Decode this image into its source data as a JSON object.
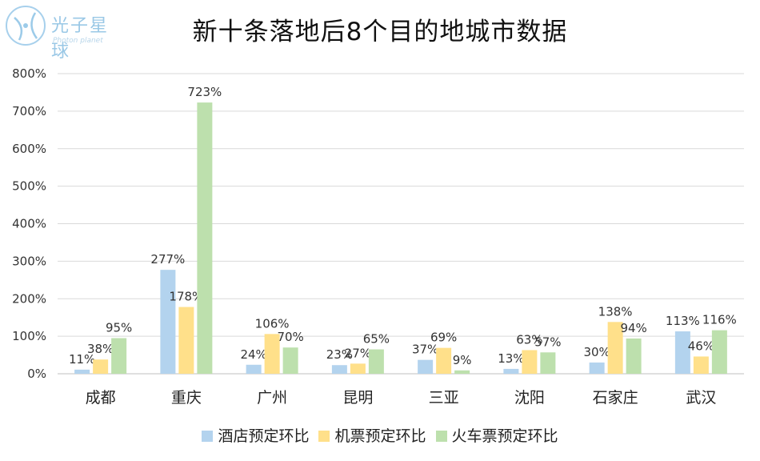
{
  "logo": {
    "text": "光子星球",
    "subtext": "Photon planet"
  },
  "chart_data": {
    "type": "bar",
    "title": "新十条落地后8个目的地城市数据",
    "categories": [
      "成都",
      "重庆",
      "广州",
      "昆明",
      "三亚",
      "沈阳",
      "石家庄",
      "武汉"
    ],
    "series": [
      {
        "name": "酒店预定环比",
        "color": "#b3d3ee",
        "values": [
          11,
          277,
          24,
          23,
          37,
          13,
          30,
          113
        ],
        "labels": [
          "11%",
          "277%",
          "24%",
          "23%",
          "37%",
          "13%",
          "30%",
          "113%"
        ]
      },
      {
        "name": "机票预定环比",
        "color": "#ffe08a",
        "values": [
          38,
          178,
          106,
          27,
          69,
          63,
          138,
          46
        ],
        "labels": [
          "38%",
          "178%",
          "106%",
          "27%",
          "69%",
          "63%",
          "138%",
          "46%"
        ]
      },
      {
        "name": "火车票预定环比",
        "color": "#bde0ad",
        "values": [
          95,
          723,
          70,
          65,
          9,
          57,
          94,
          116
        ],
        "labels": [
          "95%",
          "723%",
          "70%",
          "65%",
          "9%",
          "57%",
          "94%",
          "116%"
        ]
      }
    ],
    "ylim": [
      0,
      800
    ],
    "yticks": [
      0,
      100,
      200,
      300,
      400,
      500,
      600,
      700,
      800
    ],
    "ytick_labels": [
      "0%",
      "100%",
      "200%",
      "300%",
      "400%",
      "500%",
      "600%",
      "700%",
      "800%"
    ],
    "grid": true,
    "legend_position": "bottom"
  }
}
